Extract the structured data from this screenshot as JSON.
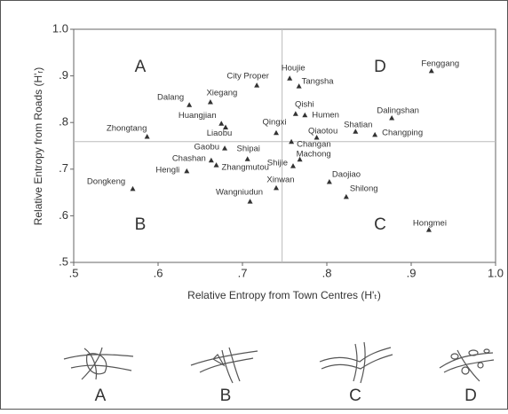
{
  "chart_data": {
    "type": "scatter",
    "x_label": "Relative Entropy from Town Centres  (H'ₜ)",
    "y_label": "Relative Entropy from Roads (H'ᵣ)",
    "xlim": [
      0.5,
      1.0
    ],
    "ylim": [
      0.5,
      1.0
    ],
    "xticks": [
      {
        "value": 0.5,
        "label": ".5"
      },
      {
        "value": 0.6,
        "label": ".6"
      },
      {
        "value": 0.7,
        "label": ".7"
      },
      {
        "value": 0.8,
        "label": ".8"
      },
      {
        "value": 0.9,
        "label": ".9"
      },
      {
        "value": 1.0,
        "label": "1.0"
      }
    ],
    "yticks": [
      {
        "value": 0.5,
        "label": ".5"
      },
      {
        "value": 0.6,
        "label": ".6"
      },
      {
        "value": 0.7,
        "label": ".7"
      },
      {
        "value": 0.8,
        "label": ".8"
      },
      {
        "value": 0.9,
        "label": ".9"
      },
      {
        "value": 1.0,
        "label": "1.0"
      }
    ],
    "reference_lines": {
      "x": 0.747,
      "y": 0.759
    },
    "quadrant_labels": [
      "A",
      "D",
      "B",
      "C"
    ],
    "color": "#333333",
    "labels": [
      "Fenggang",
      "Houjie",
      "Tangsha",
      "City Proper",
      "Dalang",
      "Xiegang",
      "Qishi",
      "Humen",
      "Dalingshan",
      "Huangjian",
      "Liaobu",
      "Qingxi",
      "Zhongtang",
      "Qiaotou",
      "Shatian",
      "Changping",
      "Changan",
      "Gaobu",
      "Shipai",
      "Machong",
      "Shijie",
      "Chashan",
      "Zhangmutou",
      "Hengli",
      "Dongkeng",
      "Daojiao",
      "Xinwan",
      "Shilong",
      "Wangniudun",
      "Hongmei"
    ],
    "x": [
      0.924,
      0.756,
      0.767,
      0.717,
      0.637,
      0.662,
      0.763,
      0.774,
      0.877,
      0.675,
      0.68,
      0.74,
      0.587,
      0.788,
      0.834,
      0.857,
      0.758,
      0.679,
      0.706,
      0.768,
      0.76,
      0.663,
      0.669,
      0.634,
      0.57,
      0.803,
      0.74,
      0.823,
      0.709,
      0.921
    ],
    "values": [
      0.911,
      0.895,
      0.878,
      0.88,
      0.838,
      0.844,
      0.819,
      0.816,
      0.81,
      0.798,
      0.79,
      0.778,
      0.77,
      0.768,
      0.781,
      0.774,
      0.759,
      0.745,
      0.722,
      0.721,
      0.707,
      0.719,
      0.709,
      0.696,
      0.658,
      0.673,
      0.66,
      0.641,
      0.631,
      0.57
    ]
  },
  "sketches": [
    "A",
    "B",
    "C",
    "D"
  ]
}
